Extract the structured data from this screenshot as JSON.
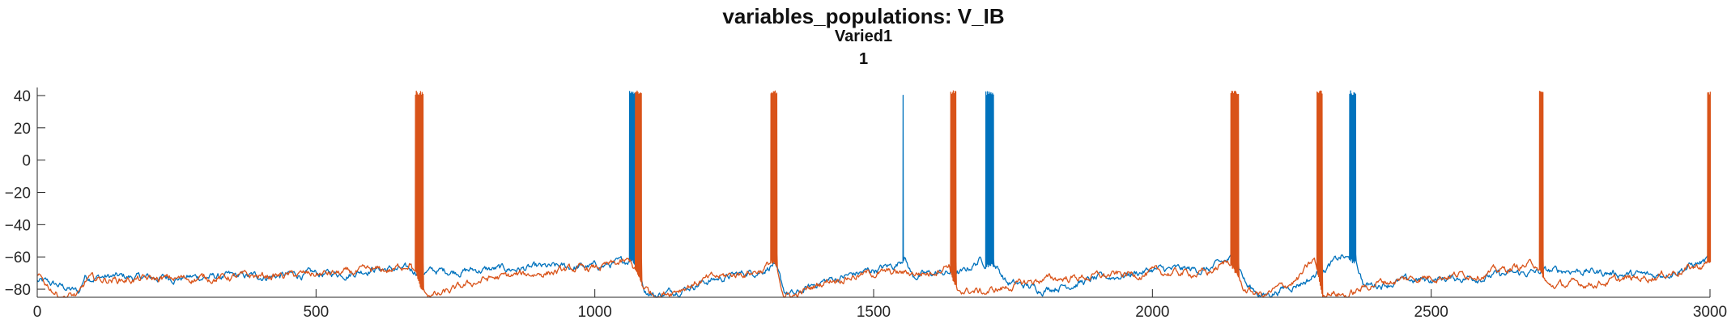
{
  "chart_data": {
    "type": "line",
    "title": "variables_populations: V_IB",
    "subtitle": "Varied1",
    "subtitle2": "1",
    "xlabel": "",
    "ylabel": "",
    "xlim": [
      0,
      3000
    ],
    "ylim": [
      -85,
      45
    ],
    "xticks": [
      0,
      500,
      1000,
      1500,
      2000,
      2500,
      3000
    ],
    "yticks": [
      -80,
      -60,
      -40,
      -20,
      0,
      20,
      40
    ],
    "grid": false,
    "legend": "none",
    "series": [
      {
        "color": "#0072BD",
        "baseline": [
          [
            0,
            -75
          ],
          [
            40,
            -78
          ],
          [
            75,
            -82
          ],
          [
            85,
            -72
          ],
          [
            200,
            -73
          ],
          [
            400,
            -72
          ],
          [
            560,
            -70
          ],
          [
            600,
            -67
          ],
          [
            700,
            -69
          ],
          [
            800,
            -68
          ],
          [
            900,
            -67
          ],
          [
            1000,
            -66
          ],
          [
            1050,
            -64
          ],
          [
            1068,
            -60
          ],
          [
            1090,
            -80
          ],
          [
            1110,
            -84
          ],
          [
            1200,
            -75
          ],
          [
            1300,
            -68
          ],
          [
            1320,
            -64
          ],
          [
            1340,
            -82
          ],
          [
            1360,
            -84
          ],
          [
            1400,
            -76
          ],
          [
            1500,
            -68
          ],
          [
            1540,
            -65
          ],
          [
            1555,
            -60
          ],
          [
            1570,
            -72
          ],
          [
            1620,
            -70
          ],
          [
            1660,
            -70
          ],
          [
            1690,
            -62
          ],
          [
            1720,
            -66
          ],
          [
            1740,
            -76
          ],
          [
            1800,
            -80
          ],
          [
            1900,
            -74
          ],
          [
            2000,
            -68
          ],
          [
            2100,
            -68
          ],
          [
            2150,
            -60
          ],
          [
            2170,
            -78
          ],
          [
            2200,
            -84
          ],
          [
            2280,
            -74
          ],
          [
            2340,
            -60
          ],
          [
            2365,
            -64
          ],
          [
            2380,
            -78
          ],
          [
            2450,
            -75
          ],
          [
            2600,
            -72
          ],
          [
            2750,
            -68
          ],
          [
            2900,
            -72
          ],
          [
            3000,
            -62
          ]
        ],
        "bursts": [
          [
            1062,
            1075,
            7
          ],
          [
            1552,
            1553,
            1
          ],
          [
            1700,
            1715,
            9
          ],
          [
            2353,
            2365,
            7
          ]
        ]
      },
      {
        "color": "#D95319",
        "baseline": [
          [
            0,
            -72
          ],
          [
            40,
            -84
          ],
          [
            75,
            -84
          ],
          [
            90,
            -74
          ],
          [
            200,
            -74
          ],
          [
            400,
            -72
          ],
          [
            560,
            -70
          ],
          [
            640,
            -68
          ],
          [
            670,
            -63
          ],
          [
            690,
            -82
          ],
          [
            720,
            -84
          ],
          [
            800,
            -74
          ],
          [
            900,
            -70
          ],
          [
            1000,
            -67
          ],
          [
            1065,
            -63
          ],
          [
            1085,
            -78
          ],
          [
            1110,
            -84
          ],
          [
            1200,
            -74
          ],
          [
            1300,
            -68
          ],
          [
            1320,
            -62
          ],
          [
            1340,
            -84
          ],
          [
            1360,
            -84
          ],
          [
            1420,
            -74
          ],
          [
            1500,
            -70
          ],
          [
            1600,
            -70
          ],
          [
            1635,
            -64
          ],
          [
            1650,
            -80
          ],
          [
            1700,
            -82
          ],
          [
            1800,
            -74
          ],
          [
            1900,
            -72
          ],
          [
            2000,
            -70
          ],
          [
            2100,
            -70
          ],
          [
            2140,
            -62
          ],
          [
            2165,
            -80
          ],
          [
            2200,
            -84
          ],
          [
            2260,
            -74
          ],
          [
            2290,
            -62
          ],
          [
            2305,
            -80
          ],
          [
            2350,
            -84
          ],
          [
            2400,
            -76
          ],
          [
            2500,
            -72
          ],
          [
            2600,
            -70
          ],
          [
            2690,
            -64
          ],
          [
            2710,
            -78
          ],
          [
            2800,
            -76
          ],
          [
            2900,
            -72
          ],
          [
            2990,
            -65
          ],
          [
            3000,
            -62
          ]
        ],
        "bursts": [
          [
            678,
            692,
            7
          ],
          [
            1072,
            1083,
            7
          ],
          [
            1315,
            1327,
            7
          ],
          [
            1638,
            1648,
            6
          ],
          [
            2140,
            2155,
            8
          ],
          [
            2295,
            2305,
            6
          ],
          [
            2693,
            2701,
            5
          ],
          [
            2995,
            3000,
            4
          ]
        ]
      }
    ]
  }
}
